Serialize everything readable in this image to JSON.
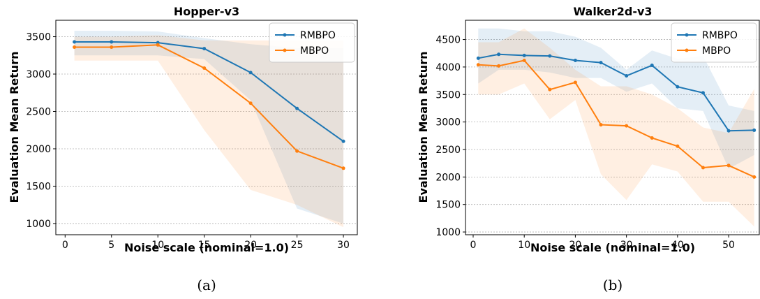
{
  "captions": [
    "(a)",
    "(b)"
  ],
  "chart_data": [
    {
      "type": "line",
      "title": "Hopper-v3",
      "xlabel": "Noise scale (nominal=1.0)",
      "ylabel": "Evaluation Mean Return",
      "xlim": [
        -1,
        31.5
      ],
      "ylim": [
        850,
        3720
      ],
      "xticks": [
        0,
        5,
        10,
        15,
        20,
        25,
        30
      ],
      "yticks": [
        1000,
        1500,
        2000,
        2500,
        3000,
        3500
      ],
      "grid": "horizontal",
      "legend": "top-right",
      "series": [
        {
          "name": "RMBPO",
          "color": "#1f77b4",
          "x": [
            1,
            5,
            10,
            15,
            20,
            25,
            30
          ],
          "y": [
            3430,
            3430,
            3420,
            3340,
            3020,
            2540,
            2100
          ],
          "upper": [
            3580,
            3580,
            3570,
            3480,
            3400,
            3350,
            3350
          ],
          "lower": [
            3250,
            3250,
            3250,
            3200,
            2650,
            1200,
            1000
          ]
        },
        {
          "name": "MBPO",
          "color": "#ff7f0e",
          "x": [
            1,
            5,
            10,
            15,
            20,
            25,
            30
          ],
          "y": [
            3360,
            3360,
            3390,
            3080,
            2610,
            1970,
            1740
          ],
          "upper": [
            3500,
            3500,
            3520,
            3450,
            3450,
            3450,
            3450
          ],
          "lower": [
            3180,
            3180,
            3180,
            2250,
            1450,
            1250,
            950
          ]
        }
      ]
    },
    {
      "type": "line",
      "title": "Walker2d-v3",
      "xlabel": "Noise scale (nominal=1.0)",
      "ylabel": "Evaluation Mean Return",
      "xlim": [
        -1.5,
        56
      ],
      "ylim": [
        950,
        4850
      ],
      "xticks": [
        0,
        10,
        20,
        30,
        40,
        50
      ],
      "yticks": [
        1000,
        1500,
        2000,
        2500,
        3000,
        3500,
        4000,
        4500
      ],
      "grid": "horizontal",
      "legend": "top-right",
      "series": [
        {
          "name": "RMBPO",
          "color": "#1f77b4",
          "x": [
            1,
            5,
            10,
            15,
            20,
            25,
            30,
            35,
            40,
            45,
            50,
            55
          ],
          "y": [
            4160,
            4230,
            4210,
            4200,
            4120,
            4080,
            3840,
            4030,
            3640,
            3530,
            2840,
            2850
          ],
          "upper": [
            4700,
            4700,
            4650,
            4650,
            4550,
            4350,
            3950,
            4300,
            4150,
            4200,
            3300,
            3200
          ],
          "lower": [
            3700,
            3950,
            3950,
            3900,
            3800,
            3800,
            3550,
            3700,
            3250,
            3200,
            2150,
            2400
          ]
        },
        {
          "name": "MBPO",
          "color": "#ff7f0e",
          "x": [
            1,
            5,
            10,
            15,
            20,
            25,
            30,
            35,
            40,
            45,
            50,
            55
          ],
          "y": [
            4040,
            4020,
            4120,
            3590,
            3720,
            2950,
            2930,
            2710,
            2560,
            2170,
            2210,
            2000
          ],
          "upper": [
            4450,
            4450,
            4700,
            4350,
            3950,
            3650,
            3650,
            3500,
            3250,
            2900,
            2800,
            3600
          ],
          "lower": [
            3500,
            3500,
            3700,
            3050,
            3400,
            2050,
            1580,
            2230,
            2100,
            1550,
            1550,
            1100
          ]
        }
      ]
    }
  ]
}
